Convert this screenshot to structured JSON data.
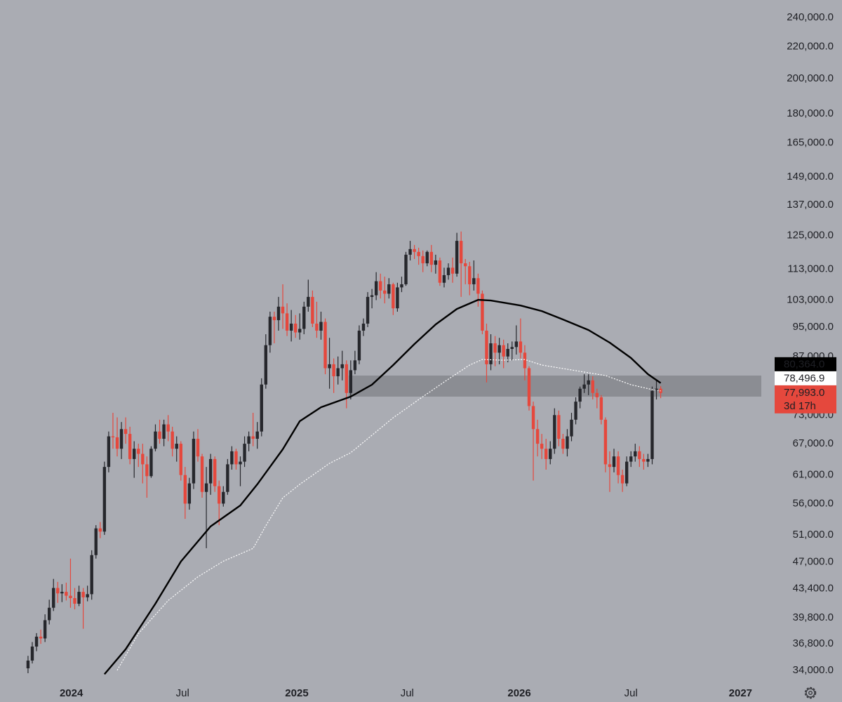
{
  "chart_data": {
    "type": "candlestick",
    "log_scale": true,
    "grid": false,
    "up_color": "#26272c",
    "down_color": "#e5483d",
    "xlim": [
      -6.6,
      172.7
    ],
    "ylim": [
      33000,
      253000
    ],
    "xticks": [
      {
        "value": 10.2,
        "label": "2024"
      },
      {
        "value": 36.4,
        "label": "Jul"
      },
      {
        "value": 63.3,
        "label": "2025"
      },
      {
        "value": 89.3,
        "label": "Jul"
      },
      {
        "value": 115.7,
        "label": "2026"
      },
      {
        "value": 142,
        "label": "Jul"
      },
      {
        "value": 167.8,
        "label": "2027"
      }
    ],
    "yticks": [
      {
        "value": 240000,
        "label": "240,000.0"
      },
      {
        "value": 220000,
        "label": "220,000.0"
      },
      {
        "value": 200000,
        "label": "200,000.0"
      },
      {
        "value": 180000,
        "label": "180,000.0"
      },
      {
        "value": 165000,
        "label": "165,000.0"
      },
      {
        "value": 149000,
        "label": "149,000.0"
      },
      {
        "value": 137000,
        "label": "137,000.0"
      },
      {
        "value": 125000,
        "label": "125,000.0"
      },
      {
        "value": 113000,
        "label": "113,000.0"
      },
      {
        "value": 103000,
        "label": "103,000.0"
      },
      {
        "value": 95000,
        "label": "95,000.0"
      },
      {
        "value": 87000,
        "label": "87,000.0"
      },
      {
        "value": 73000,
        "label": "73,000.0"
      },
      {
        "value": 67000,
        "label": "67,000.0"
      },
      {
        "value": 61000,
        "label": "61,000.0"
      },
      {
        "value": 56000,
        "label": "56,000.0"
      },
      {
        "value": 51000,
        "label": "51,000.0"
      },
      {
        "value": 47000,
        "label": "47,000.0"
      },
      {
        "value": 43400,
        "label": "43,400.0"
      },
      {
        "value": 39800,
        "label": "39,800.0"
      },
      {
        "value": 36800,
        "label": "36,800.0"
      },
      {
        "value": 34000,
        "label": "34,000.0"
      }
    ],
    "zone": {
      "low": 77150,
      "high": 82170,
      "x_start": 75.5,
      "color": "#8b8d93"
    },
    "candles": {
      "open": [
        34200,
        35000,
        36500,
        37600,
        37400,
        39500,
        41000,
        43500,
        42800,
        43000,
        42500,
        42200,
        41500,
        43000,
        42300,
        42700,
        48000,
        52000,
        51500,
        62500,
        68500,
        68300,
        66000,
        70000,
        69000,
        64000,
        66000,
        65000,
        63000,
        60800,
        66000,
        69500,
        68000,
        71000,
        69500,
        66000,
        67000,
        61000,
        56000,
        59500,
        68000,
        64500,
        58000,
        59500,
        64000,
        59000,
        56000,
        58000,
        63000,
        65500,
        63000,
        63500,
        67000,
        68500,
        68000,
        69500,
        80000,
        90000,
        98000,
        97000,
        101000,
        99000,
        94000,
        96000,
        93500,
        94500,
        101000,
        104000,
        96000,
        94000,
        96500,
        84000,
        85000,
        82000,
        84000,
        85000,
        78000,
        83500,
        86000,
        94000,
        96000,
        104000,
        104500,
        109000,
        106000,
        105000,
        108000,
        100500,
        107000,
        108000,
        118000,
        120000,
        119000,
        117500,
        115000,
        119000,
        114500,
        116000,
        108500,
        111000,
        113500,
        111500,
        123000,
        115000,
        114000,
        108000,
        110000,
        105000,
        94000,
        85000,
        90500,
        88000,
        90000,
        87000,
        89000,
        89500,
        91000,
        88000,
        84000,
        75000,
        70000,
        67000,
        66000,
        64000,
        66000,
        73000,
        68000,
        66000,
        68500,
        72000,
        76000,
        79000,
        80000,
        81000,
        78000,
        77000,
        72000,
        63000,
        62500,
        64500,
        61000,
        59500,
        63500,
        64500,
        65500,
        64000,
        63500,
        64000,
        78500,
        79000
      ],
      "high": [
        35500,
        37000,
        38000,
        38400,
        40200,
        42000,
        44700,
        44300,
        44000,
        44200,
        47500,
        43500,
        43800,
        43500,
        43800,
        48700,
        52500,
        53000,
        63500,
        69500,
        73500,
        72500,
        71500,
        72500,
        70500,
        67500,
        67000,
        67000,
        64500,
        66500,
        71000,
        72000,
        72000,
        73000,
        70500,
        68500,
        67500,
        62500,
        60500,
        69500,
        70000,
        65000,
        62500,
        65000,
        64500,
        60000,
        59000,
        64000,
        66500,
        66000,
        64500,
        68500,
        69500,
        73500,
        71500,
        81500,
        93000,
        99500,
        99500,
        104000,
        108000,
        102000,
        100000,
        98500,
        99000,
        102500,
        109500,
        106000,
        102500,
        99500,
        97500,
        92000,
        86500,
        87000,
        88500,
        86000,
        86000,
        88500,
        95500,
        97500,
        105500,
        106500,
        112000,
        111500,
        110500,
        110000,
        108500,
        108500,
        110500,
        119000,
        123000,
        121500,
        120500,
        119500,
        119500,
        121500,
        118000,
        117000,
        113500,
        115000,
        117000,
        126000,
        126500,
        116500,
        115500,
        116000,
        111500,
        106000,
        96000,
        93000,
        92500,
        92000,
        91500,
        90500,
        91000,
        95500,
        97500,
        90000,
        84500,
        76000,
        72000,
        69000,
        68000,
        67500,
        74500,
        74000,
        69000,
        70000,
        73500,
        77000,
        79500,
        82500,
        82500,
        82000,
        79000,
        77500,
        72500,
        65500,
        66000,
        65500,
        62000,
        64500,
        65500,
        67000,
        66500,
        65000,
        65000,
        79500,
        81000,
        79600
      ],
      "low": [
        33700,
        34700,
        36000,
        36800,
        37000,
        39000,
        40600,
        41600,
        41700,
        41900,
        41000,
        40800,
        41200,
        38500,
        41800,
        42000,
        47500,
        50500,
        51000,
        61500,
        66000,
        64500,
        64000,
        67000,
        63000,
        60500,
        62500,
        59500,
        57000,
        60500,
        65500,
        67000,
        66500,
        67500,
        64500,
        63500,
        60000,
        53500,
        55000,
        58500,
        63500,
        57000,
        49000,
        57500,
        58000,
        52500,
        55500,
        57500,
        62000,
        62000,
        59000,
        62500,
        65500,
        66500,
        66000,
        68500,
        79000,
        88000,
        90500,
        94000,
        94500,
        92500,
        91000,
        92000,
        91500,
        93000,
        99500,
        95000,
        92000,
        91500,
        82500,
        79000,
        78000,
        80000,
        81000,
        74500,
        76500,
        82500,
        85000,
        92500,
        95000,
        100500,
        103000,
        103500,
        102000,
        103500,
        98500,
        99500,
        105500,
        107500,
        116000,
        116500,
        114500,
        112000,
        114000,
        112000,
        111500,
        107500,
        107000,
        109500,
        108500,
        110500,
        104000,
        108000,
        104500,
        106000,
        101000,
        93000,
        80500,
        83500,
        84500,
        85000,
        84000,
        85500,
        86000,
        87500,
        86500,
        81000,
        74000,
        60000,
        64500,
        64000,
        62000,
        63000,
        65000,
        66500,
        65000,
        64500,
        67500,
        71000,
        74500,
        78000,
        77500,
        76500,
        74500,
        71000,
        61500,
        58000,
        61500,
        59500,
        58000,
        59000,
        62500,
        63500,
        62500,
        62000,
        62500,
        63000,
        76500,
        76800
      ],
      "close": [
        35000,
        36500,
        37600,
        37400,
        39500,
        41000,
        43500,
        42800,
        43000,
        42500,
        42200,
        41500,
        43000,
        42300,
        42700,
        48000,
        52000,
        51500,
        62500,
        68500,
        68300,
        66000,
        70000,
        69000,
        64000,
        66000,
        65000,
        63000,
        60800,
        66000,
        69500,
        68000,
        71000,
        69500,
        66000,
        67000,
        61000,
        56000,
        59500,
        68000,
        64500,
        58000,
        59500,
        64000,
        59000,
        56000,
        58000,
        63000,
        65500,
        63000,
        63500,
        67000,
        68500,
        68000,
        69500,
        80000,
        90000,
        98000,
        97000,
        101000,
        99000,
        94000,
        96000,
        93500,
        94500,
        101000,
        104000,
        96000,
        94000,
        96500,
        84000,
        85000,
        82000,
        84000,
        85000,
        78000,
        83500,
        86000,
        94000,
        96000,
        104000,
        104500,
        109000,
        106000,
        105000,
        108000,
        100500,
        107000,
        108000,
        118000,
        120000,
        119000,
        117500,
        115000,
        119000,
        114500,
        116000,
        108500,
        111000,
        113500,
        111500,
        123000,
        115000,
        114000,
        108000,
        110000,
        105000,
        94000,
        85000,
        90500,
        88000,
        90000,
        87000,
        89000,
        89500,
        91000,
        88000,
        84000,
        75000,
        70000,
        67000,
        66000,
        64000,
        66000,
        73000,
        68000,
        66000,
        68500,
        72000,
        76000,
        79000,
        80000,
        81000,
        78000,
        77000,
        72000,
        63000,
        62500,
        64500,
        61000,
        59500,
        63500,
        64500,
        65500,
        64000,
        63500,
        64000,
        78500,
        79000,
        77993
      ],
      "last_close_label": "77,993.0",
      "countdown": "3d 17h"
    },
    "series": [
      {
        "color": "#000000",
        "style": "solid",
        "x": [
          18,
          23,
          30,
          36,
          43,
          50,
          54,
          60,
          64,
          69,
          76,
          81,
          86,
          91,
          96,
          101,
          106,
          109,
          116,
          121,
          126,
          132,
          137,
          142,
          146,
          149
        ],
        "values": [
          33600,
          36210,
          41510,
          47090,
          52300,
          55700,
          59330,
          65900,
          71680,
          74740,
          77150,
          79950,
          84800,
          90310,
          95780,
          100310,
          103090,
          102870,
          101360,
          99680,
          97200,
          94190,
          90690,
          86620,
          82510,
          80364
        ],
        "last_value_label": "80,364.0"
      },
      {
        "color": "#ffffff",
        "style": "dotted",
        "x": [
          21,
          26,
          33,
          40,
          46,
          53,
          56,
          60,
          64,
          71,
          76,
          81,
          86,
          93,
          99,
          104,
          107,
          112,
          117,
          121,
          126,
          131,
          136,
          142,
          147,
          149
        ],
        "values": [
          34000,
          37940,
          41890,
          44980,
          47130,
          48970,
          52400,
          56980,
          59330,
          63180,
          65220,
          68720,
          72430,
          77150,
          81300,
          84800,
          86230,
          86050,
          86230,
          84800,
          83910,
          83030,
          82170,
          79950,
          78790,
          78496.9
        ],
        "last_value_label": "78,496.9"
      }
    ]
  }
}
